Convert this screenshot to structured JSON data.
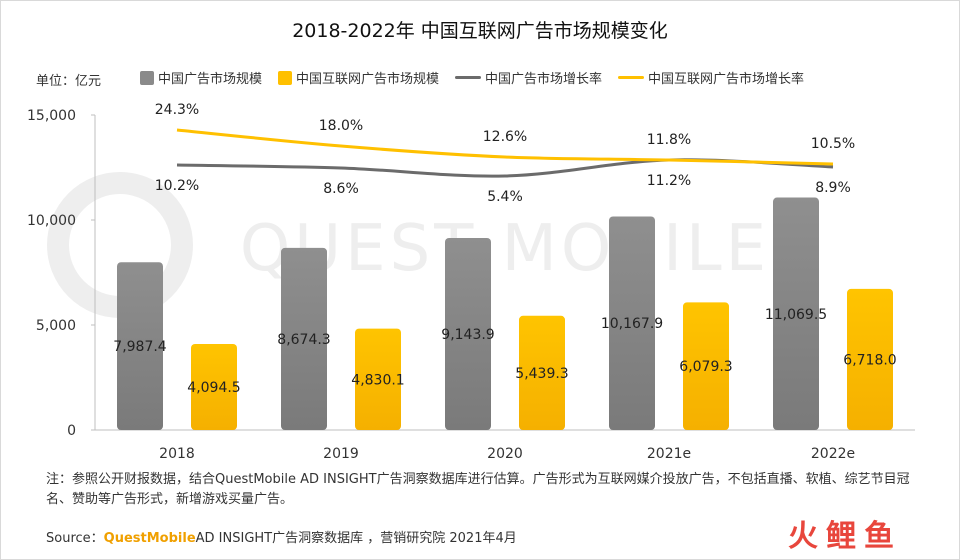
{
  "title": "2018-2022年 中国互联网广告市场规模变化",
  "unit_label": "单位：亿元",
  "watermark_text": "QUEST MOBILE",
  "legend": [
    {
      "label": "中国广告市场规模",
      "kind": "bar",
      "color": "#8a8a8a"
    },
    {
      "label": "中国互联网广告市场规模",
      "kind": "bar",
      "color": "#ffc000"
    },
    {
      "label": "中国广告市场增长率",
      "kind": "line",
      "color": "#6b6b6b"
    },
    {
      "label": "中国互联网广告市场增长率",
      "kind": "line",
      "color": "#ffc000"
    }
  ],
  "chart_data": {
    "type": "bar",
    "categories": [
      "2018",
      "2019",
      "2020",
      "2021e",
      "2022e"
    ],
    "ylim": [
      0,
      15000
    ],
    "yticks": [
      0,
      5000,
      10000,
      15000
    ],
    "ytick_labels": [
      "0",
      "5,000",
      "10,000",
      "15,000"
    ],
    "series": [
      {
        "name": "中国广告市场规模",
        "kind": "bar",
        "color": "#8a8a8a",
        "values": [
          7987.4,
          8674.3,
          9143.9,
          10167.9,
          11069.5
        ],
        "labels": [
          "7,987.4",
          "8,674.3",
          "9,143.9",
          "10,167.9",
          "11,069.5"
        ]
      },
      {
        "name": "中国互联网广告市场规模",
        "kind": "bar",
        "color": "#ffc000",
        "values": [
          4094.5,
          4830.1,
          5439.3,
          6079.3,
          6718.0
        ],
        "labels": [
          "4,094.5",
          "4,830.1",
          "5,439.3",
          "6,079.3",
          "6,718.0"
        ]
      },
      {
        "name": "中国广告市场增长率",
        "kind": "line",
        "color": "#6b6b6b",
        "values": [
          10.2,
          8.6,
          5.4,
          11.2,
          8.9
        ],
        "labels": [
          "10.2%",
          "8.6%",
          "5.4%",
          "11.2%",
          "8.9%"
        ]
      },
      {
        "name": "中国互联网广告市场增长率",
        "kind": "line",
        "color": "#ffc000",
        "values": [
          24.3,
          18.0,
          12.6,
          11.8,
          10.5
        ],
        "labels": [
          "24.3%",
          "18.0%",
          "12.6%",
          "11.8%",
          "10.5%"
        ]
      }
    ]
  },
  "note": "注：参照公开财报数据，结合QuestMobile AD INSIGHT广告洞察数据库进行估算。广告形式为互联网媒介投放广告，不包括直播、软植、综艺节目冠名、赞助等广告形式，新增游戏买量广告。",
  "source": {
    "prefix": "Source：",
    "brand": "QuestMobile",
    "rest": "AD INSIGHT广告洞察数据库 ，营销研究院 2021年4月"
  },
  "logo_text": "火鲤鱼"
}
